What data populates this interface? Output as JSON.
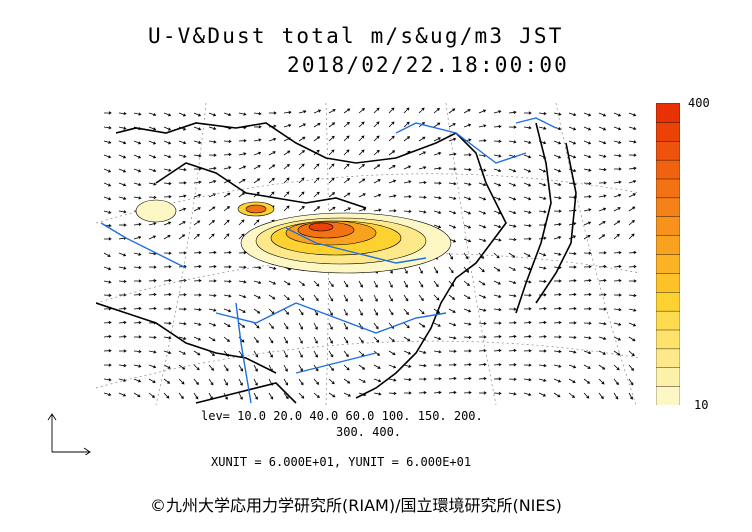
{
  "title": {
    "line1": "U-V&Dust total m/s&ug/m3 JST",
    "line2": "2018/02/22.18:00:00"
  },
  "colorbar": {
    "max_label": "400",
    "min_label": "10",
    "colors": [
      "#fdf7c6",
      "#fdf0a8",
      "#fde98a",
      "#fde26c",
      "#fdda4e",
      "#fdd230",
      "#fcc228",
      "#fbb224",
      "#f9a220",
      "#f7921c",
      "#f58218",
      "#f37214",
      "#f06210",
      "#ee520c",
      "#eb4208",
      "#e83204"
    ]
  },
  "levels": {
    "line1": "lev= 10.0 20.0 40.0 60.0 100. 150. 200.",
    "line2": "300. 400."
  },
  "units": "XUNIT = 6.000E+01, YUNIT = 6.000E+01",
  "copyright": "©九州大学応用力学研究所(RIAM)/国立環境研究所(NIES)"
}
